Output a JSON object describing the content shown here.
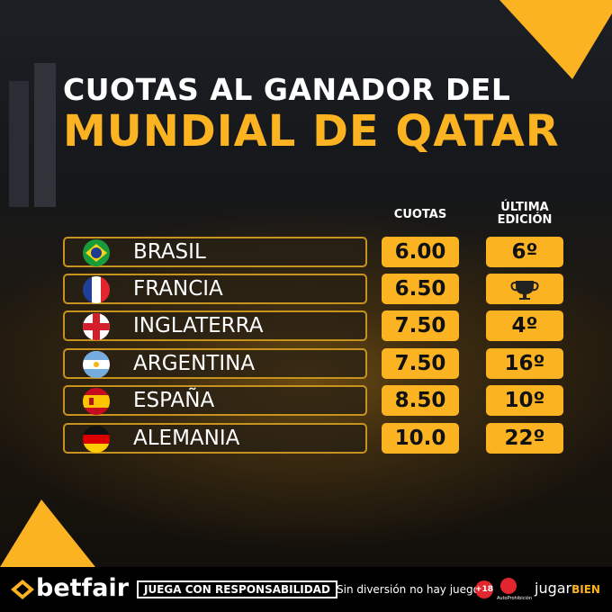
{
  "header": {
    "title_line1": "CUOTAS AL GANADOR DEL",
    "title_line2": "MUNDIAL DE QATAR"
  },
  "table": {
    "columns": [
      "CUOTAS",
      "ÚLTIMA EDICIÓN"
    ],
    "rows": [
      {
        "country": "BRASIL",
        "odds": "6.00",
        "last_edition": "6º"
      },
      {
        "country": "FRANCIA",
        "odds": "6.50"
      },
      {
        "country": "INGLATERRA",
        "odds": "7.50",
        "last_edition": "4º"
      },
      {
        "country": "ARGENTINA",
        "odds": "7.50",
        "last_edition": "16º"
      },
      {
        "country": "ESPAÑA",
        "odds": "8.50",
        "last_edition": "10º"
      },
      {
        "country": "ALEMANIA",
        "odds": "10.0",
        "last_edition": "22º"
      }
    ]
  },
  "footer": {
    "brand": "betfair",
    "responsible": "JUEGA CON RESPONSABILIDAD",
    "slogan": "Sin diversión no hay juego",
    "age": "+18",
    "self_ban": "AutoProhibición",
    "jugar": "jugar",
    "bien": "BIEN"
  }
}
